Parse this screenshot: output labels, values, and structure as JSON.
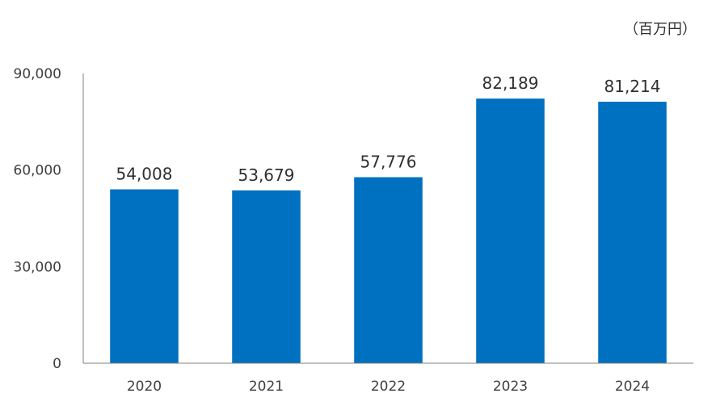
{
  "chart_data": {
    "type": "bar",
    "unit_label": "（百万円）",
    "categories": [
      "2020",
      "2021",
      "2022",
      "2023",
      "2024"
    ],
    "values": [
      54008,
      53679,
      57776,
      82189,
      81214
    ],
    "data_labels": [
      "54,008",
      "53,679",
      "57,776",
      "82,189",
      "81,214"
    ],
    "y_ticks": [
      0,
      30000,
      60000,
      90000
    ],
    "y_tick_labels": [
      "0",
      "30,000",
      "60,000",
      "90,000"
    ],
    "ylim": [
      0,
      90000
    ],
    "bar_color": "#0070C0",
    "axis_color": "#808080",
    "grid": false
  }
}
